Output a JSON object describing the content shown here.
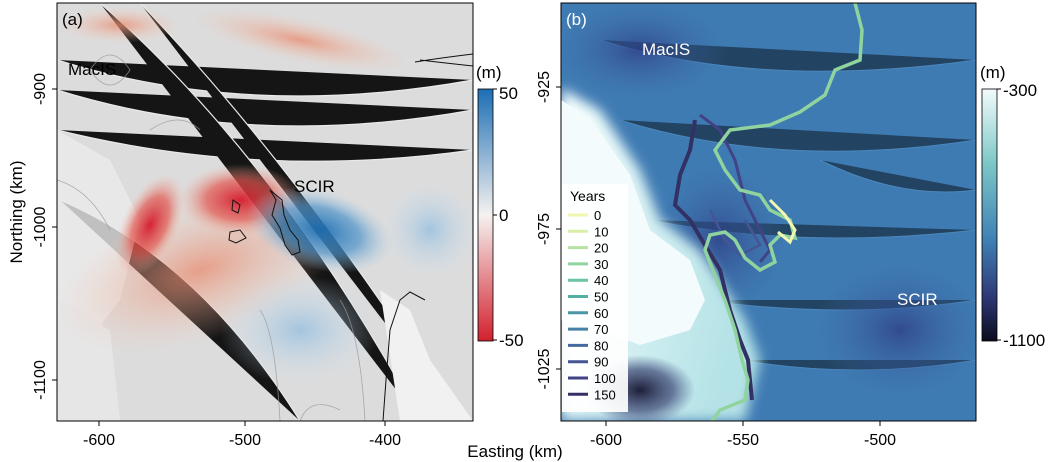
{
  "figure": {
    "xlabel": "Easting (km)",
    "ylabel": "Northing (km)"
  },
  "panel_a": {
    "label": "(a)",
    "region_labels": [
      "MacIS",
      "SCIR"
    ],
    "xticks": [
      "-600",
      "-500",
      "-400"
    ],
    "yticks": [
      "-900",
      "-1000",
      "-1100"
    ],
    "colorbar": {
      "unit": "(m)",
      "ticks": [
        "50",
        "0",
        "-50"
      ],
      "colors": [
        "#1c6eb4",
        "#f5f2f0",
        "#d2202e"
      ]
    }
  },
  "panel_b": {
    "label": "(b)",
    "region_labels": [
      "MacIS",
      "SCIR"
    ],
    "xticks": [
      "-600",
      "-550",
      "-500"
    ],
    "yticks": [
      "-925",
      "-975",
      "-1025"
    ],
    "colorbar": {
      "unit": "(m)",
      "ticks": [
        "-300",
        "-1100"
      ],
      "colors": [
        "#f3fbfc",
        "#7cc6c6",
        "#3f80b4",
        "#2e3a78",
        "#0b0b1e"
      ]
    },
    "legend": {
      "title": "Years",
      "entries": [
        {
          "label": "0",
          "color": "#f2f7b0"
        },
        {
          "label": "10",
          "color": "#d9efa8"
        },
        {
          "label": "20",
          "color": "#b6e3a3"
        },
        {
          "label": "30",
          "color": "#8fd39f"
        },
        {
          "label": "40",
          "color": "#6cc3a0"
        },
        {
          "label": "50",
          "color": "#53afa2"
        },
        {
          "label": "60",
          "color": "#4a98a6"
        },
        {
          "label": "70",
          "color": "#4681a6"
        },
        {
          "label": "80",
          "color": "#456aa0"
        },
        {
          "label": "90",
          "color": "#455594"
        },
        {
          "label": "100",
          "color": "#414384"
        },
        {
          "label": "150",
          "color": "#333163"
        }
      ]
    }
  }
}
